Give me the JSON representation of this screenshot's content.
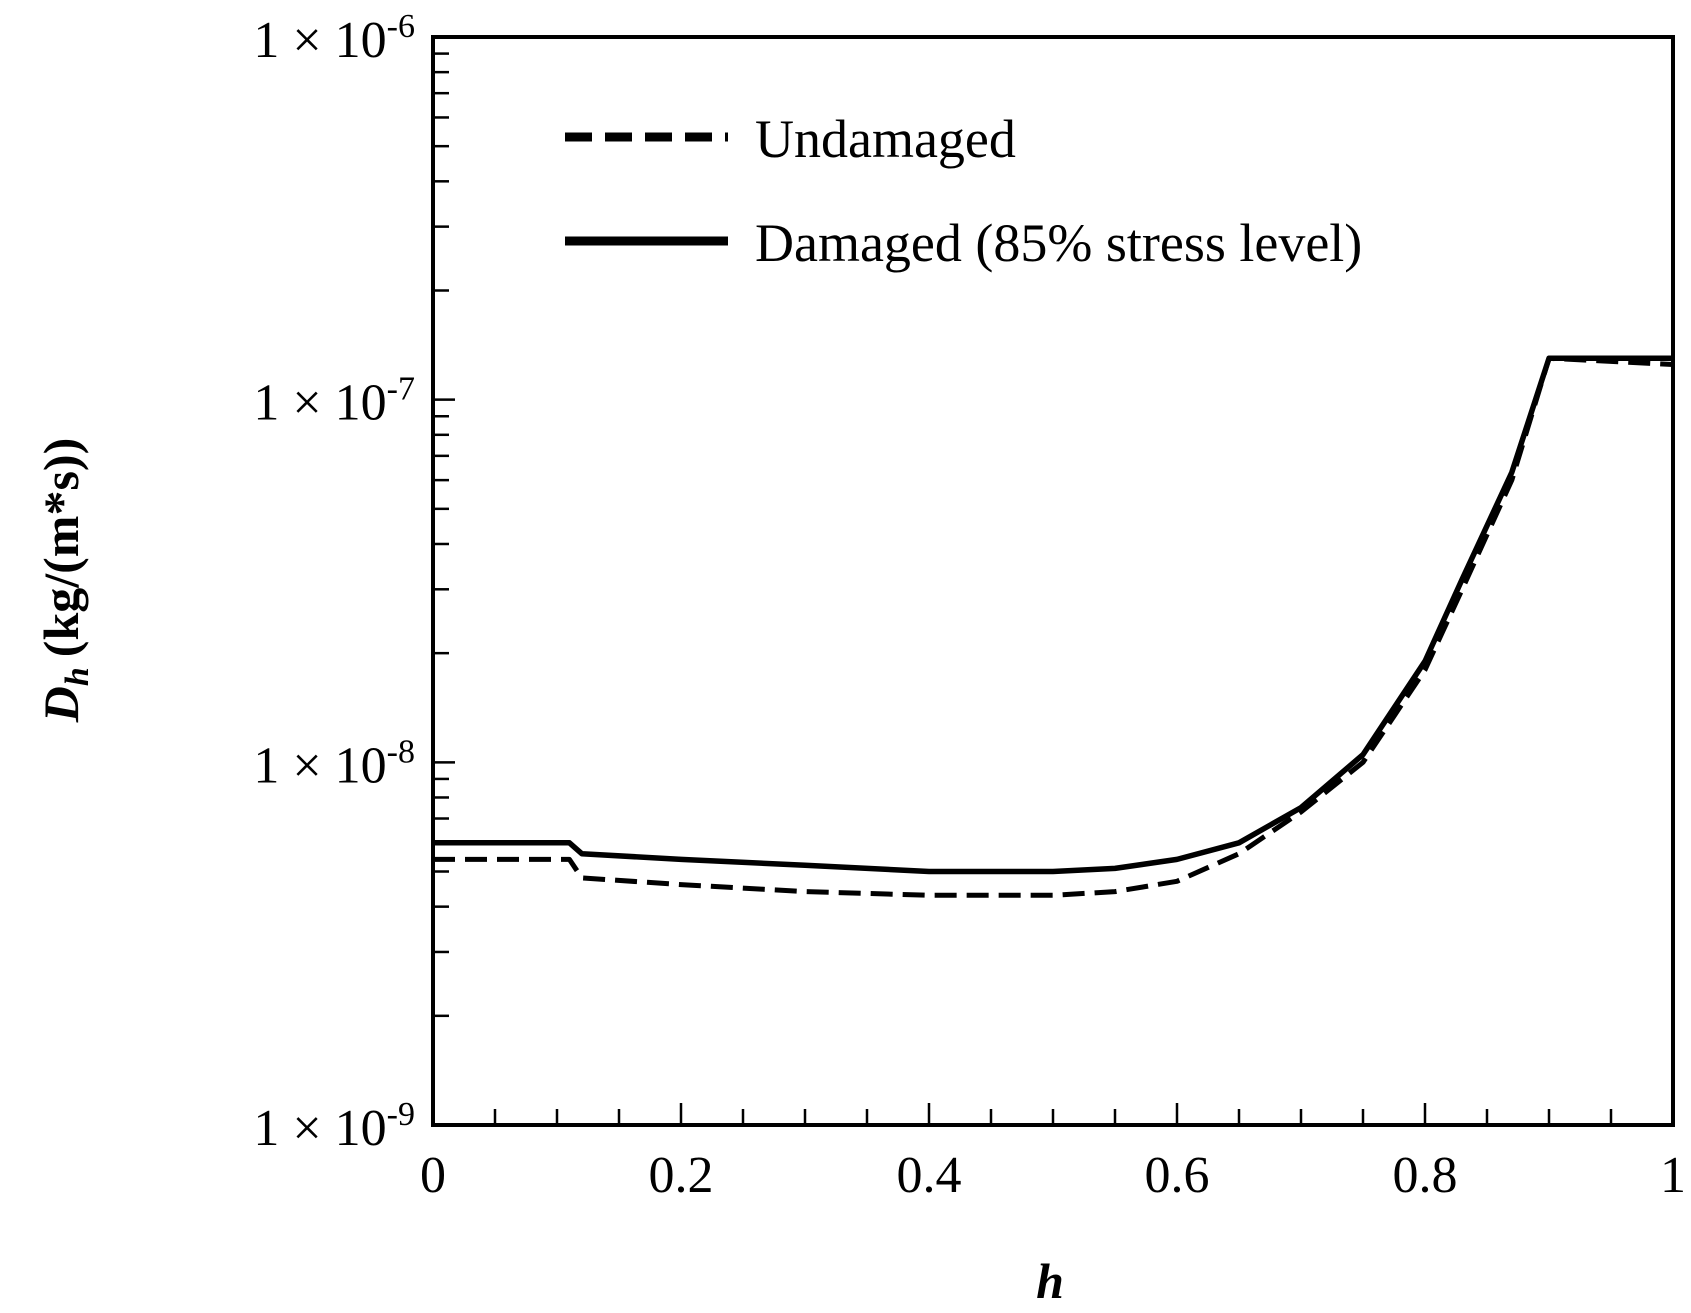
{
  "chart_data": {
    "type": "line",
    "title": "",
    "xlabel": "h",
    "ylabel_main": "D",
    "ylabel_sub": "h",
    "ylabel_units": "(kg/(m*s))",
    "xscale": "linear",
    "yscale": "log",
    "xlim": [
      0,
      1
    ],
    "ylim": [
      1e-09,
      1e-06
    ],
    "x_ticks": [
      0,
      0.2,
      0.4,
      0.6,
      0.8,
      1
    ],
    "x_tick_labels": [
      "0",
      "0.2",
      "0.4",
      "0.6",
      "0.8",
      "1"
    ],
    "y_ticks": [
      1e-09,
      1e-08,
      1e-07,
      1e-06
    ],
    "y_tick_mantissa": "1 × 10",
    "y_tick_exponents": [
      "-9",
      "-8",
      "-7",
      "-6"
    ],
    "legend_position": "top-left",
    "series": [
      {
        "name": "Undamaged",
        "style": "dashed",
        "color": "#000000",
        "x": [
          0,
          0.11,
          0.12,
          0.2,
          0.3,
          0.4,
          0.5,
          0.55,
          0.6,
          0.65,
          0.7,
          0.75,
          0.8,
          0.83,
          0.87,
          0.9,
          1.0
        ],
        "y": [
          5.4e-09,
          5.4e-09,
          4.8e-09,
          4.6e-09,
          4.4e-09,
          4.3e-09,
          4.3e-09,
          4.4e-09,
          4.7e-09,
          5.6e-09,
          7.3e-09,
          1e-08,
          1.8e-08,
          3e-08,
          6e-08,
          1.3e-07,
          1.25e-07
        ]
      },
      {
        "name": "Damaged (85% stress level)",
        "style": "solid",
        "color": "#000000",
        "x": [
          0,
          0.11,
          0.12,
          0.2,
          0.3,
          0.4,
          0.5,
          0.55,
          0.6,
          0.65,
          0.7,
          0.75,
          0.8,
          0.83,
          0.87,
          0.9,
          1.0
        ],
        "y": [
          6e-09,
          6e-09,
          5.6e-09,
          5.4e-09,
          5.2e-09,
          5e-09,
          5e-09,
          5.1e-09,
          5.4e-09,
          6e-09,
          7.5e-09,
          1.05e-08,
          1.9e-08,
          3.2e-08,
          6.3e-08,
          1.3e-07,
          1.3e-07
        ]
      }
    ]
  }
}
